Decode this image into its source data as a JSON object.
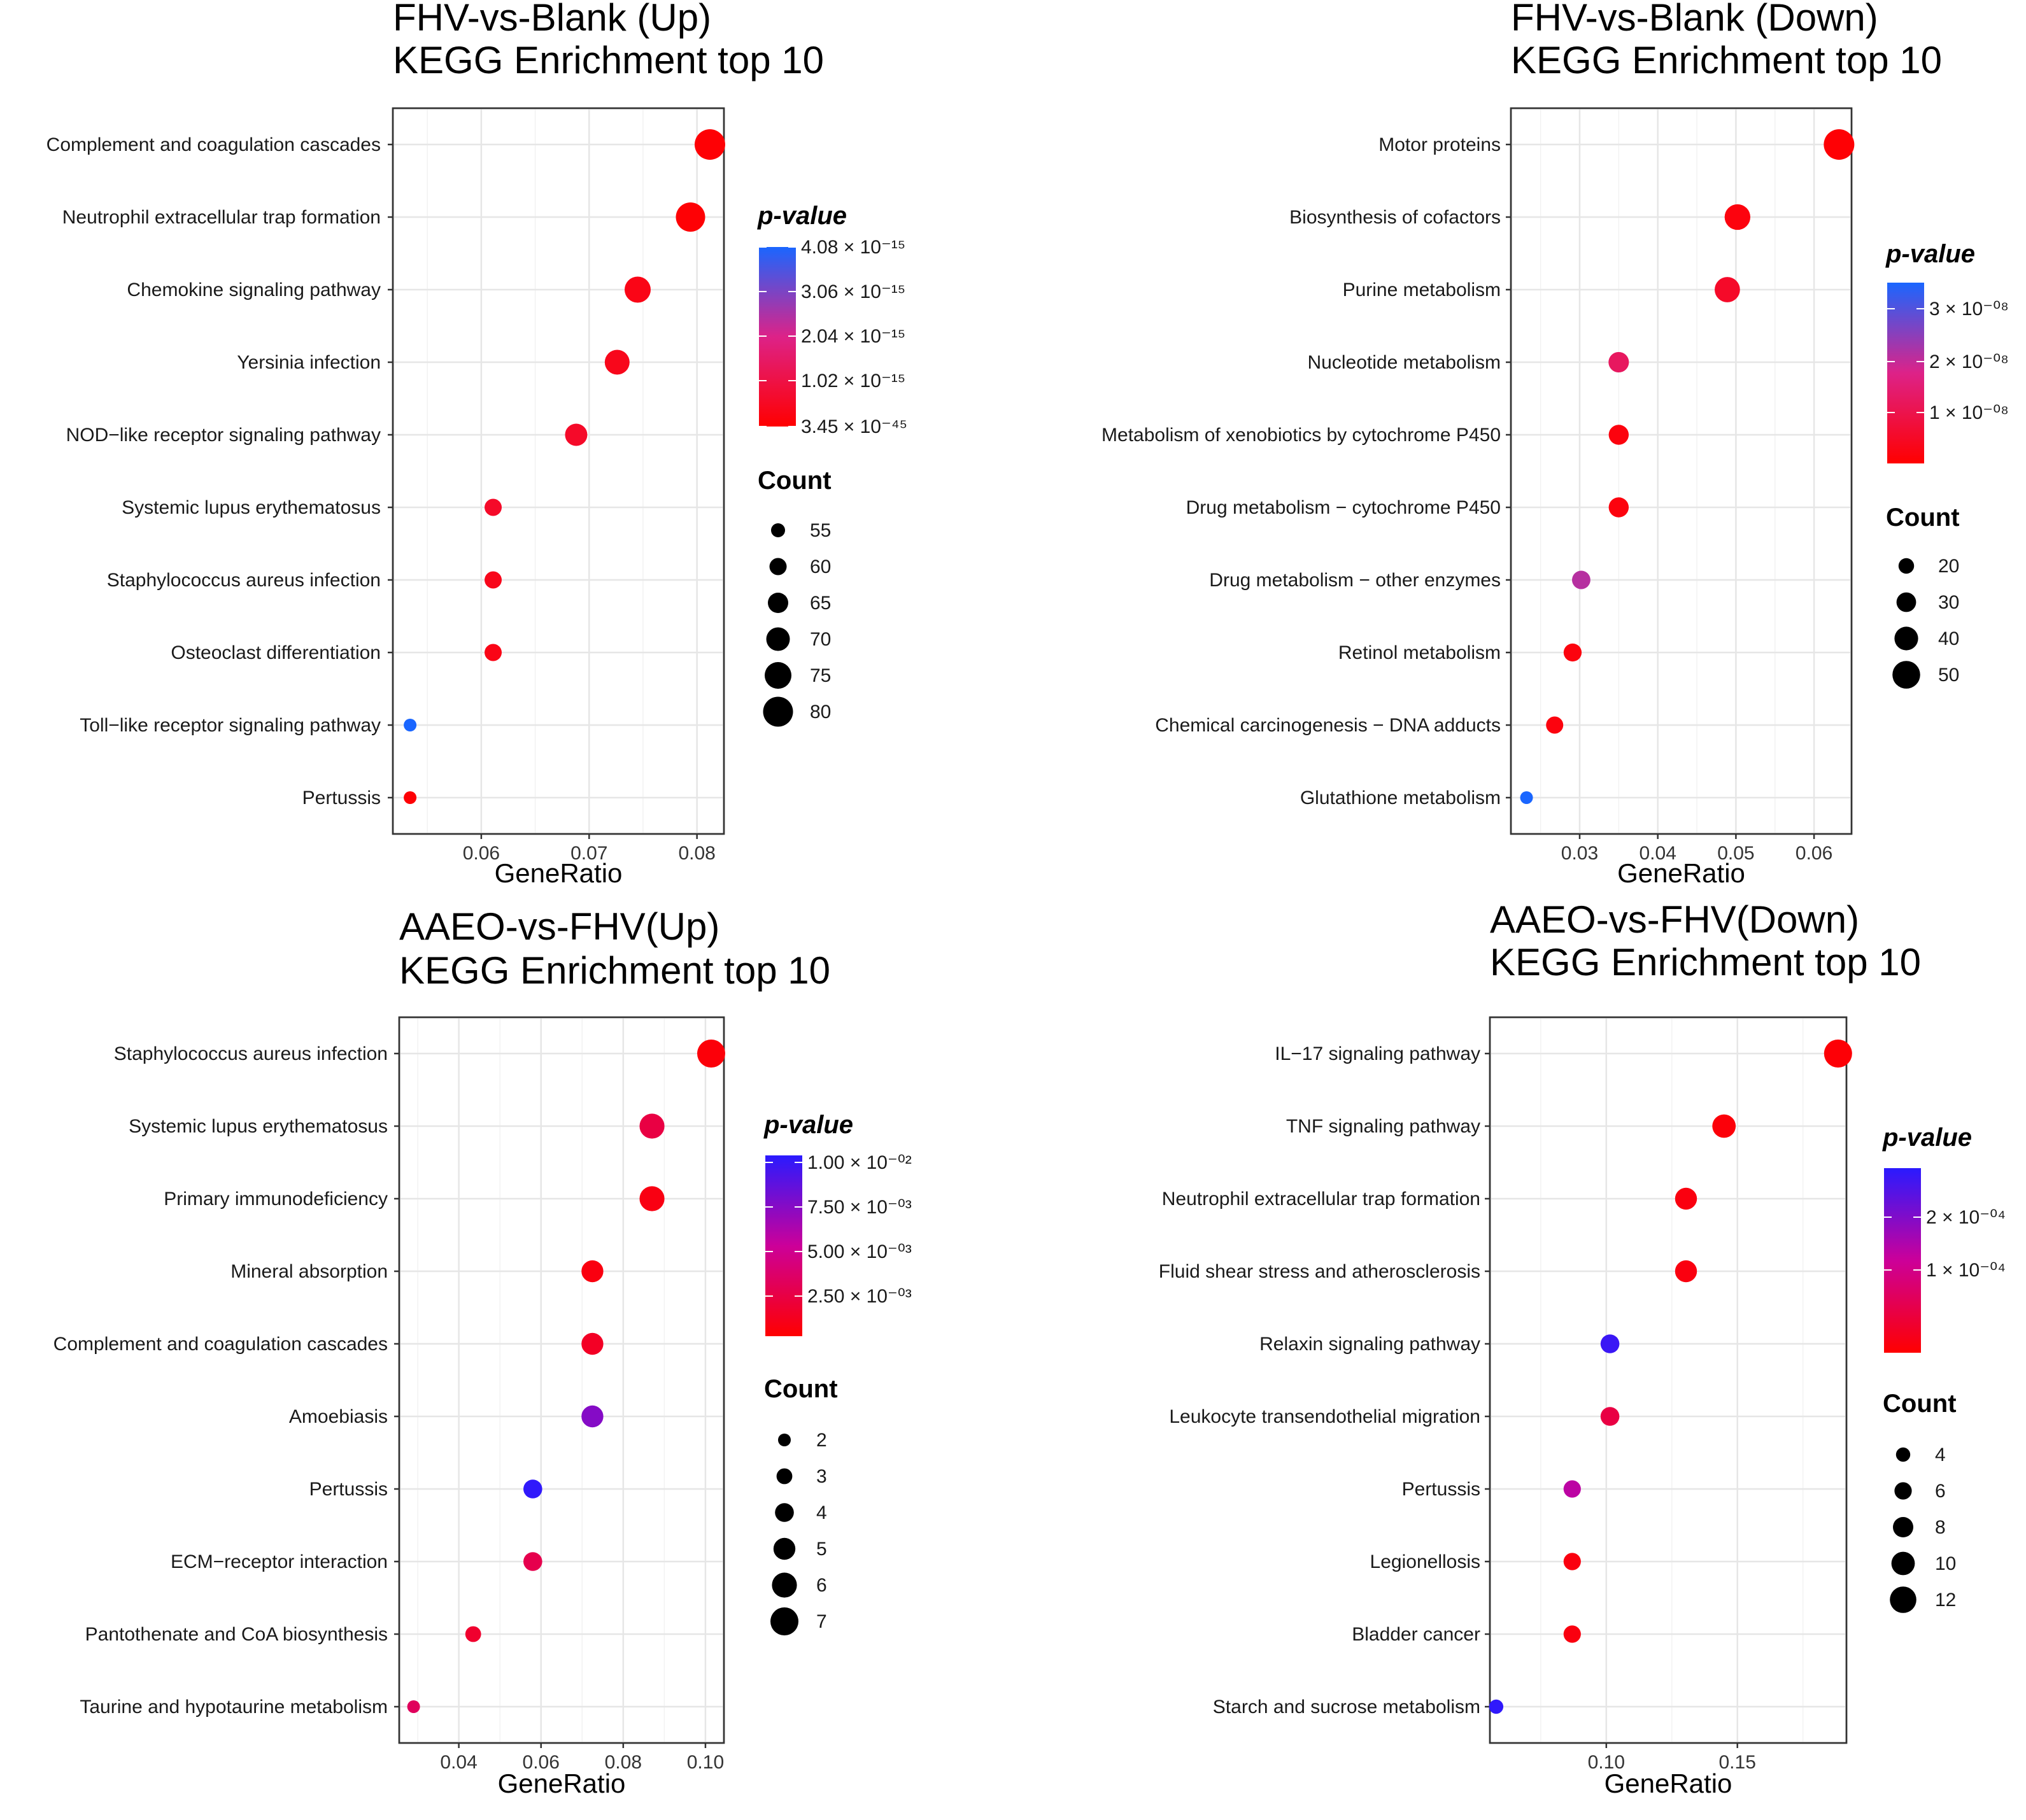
{
  "chart_data": [
    {
      "type": "scatter",
      "title": [
        "FHV-vs-Blank (Up)",
        "KEGG Enrichment top 10"
      ],
      "xlabel": "GeneRatio",
      "xticks": [
        "0.06",
        "0.07",
        "0.08"
      ],
      "xtick_values": [
        0.06,
        0.07,
        0.08
      ],
      "xlim": [
        0.0518,
        0.0825
      ],
      "color_legend": {
        "title": "p-value",
        "labels": [
          "4.08 × 10⁻¹⁵",
          "3.06 × 10⁻¹⁵",
          "2.04 × 10⁻¹⁵",
          "1.02 × 10⁻¹⁵",
          "3.45 × 10⁻⁴⁵"
        ],
        "top_color": "#1a66ff"
      },
      "size_legend": {
        "title": "Count",
        "labels": [
          "55",
          "60",
          "65",
          "70",
          "75",
          "80"
        ],
        "values": [
          55,
          60,
          65,
          70,
          75,
          80
        ]
      },
      "size_range": [
        53,
        81
      ],
      "categories": [
        "Complement and coagulation cascades",
        "Neutrophil extracellular trap formation",
        "Chemokine signaling pathway",
        "Yersinia infection",
        "NOD−like receptor signaling pathway",
        "Systemic lupus erythematosus",
        "Staphylococcus aureus infection",
        "Osteoclast differentiation",
        "Toll−like receptor signaling pathway",
        "Pertussis"
      ],
      "gene_ratio": [
        0.0812,
        0.0794,
        0.0745,
        0.0726,
        0.0688,
        0.0611,
        0.0611,
        0.0611,
        0.0534,
        0.0534
      ],
      "count": [
        81,
        79,
        74,
        72,
        68,
        60,
        60,
        60,
        53,
        53
      ],
      "p_value_rel": [
        0.02,
        0.02,
        0.08,
        0.1,
        0.15,
        0.15,
        0.1,
        0.08,
        1.0,
        0.02
      ]
    },
    {
      "type": "scatter",
      "title": [
        "FHV-vs-Blank (Down)",
        "KEGG Enrichment top 10"
      ],
      "xlabel": "GeneRatio",
      "xticks": [
        "0.03",
        "0.04",
        "0.05",
        "0.06"
      ],
      "xtick_values": [
        0.03,
        0.04,
        0.05,
        0.06
      ],
      "xlim": [
        0.0212,
        0.0648
      ],
      "color_legend": {
        "title": "p-value",
        "labels": [
          "3 × 10⁻⁰⁸",
          "2 × 10⁻⁰⁸",
          "1 × 10⁻⁰⁸"
        ],
        "top_color": "#1a66ff"
      },
      "size_legend": {
        "title": "Count",
        "labels": [
          "20",
          "30",
          "40",
          "50"
        ],
        "values": [
          20,
          30,
          40,
          50
        ]
      },
      "size_range": [
        13,
        57
      ],
      "categories": [
        "Motor proteins",
        "Biosynthesis of cofactors",
        "Purine metabolism",
        "Nucleotide metabolism",
        "Metabolism of xenobiotics by cytochrome P450",
        "Drug metabolism − cytochrome P450",
        "Drug metabolism − other enzymes",
        "Retinol metabolism",
        "Chemical carcinogenesis − DNA adducts",
        "Glutathione metabolism"
      ],
      "gene_ratio": [
        0.0632,
        0.0502,
        0.0489,
        0.035,
        0.035,
        0.035,
        0.0302,
        0.0291,
        0.0268,
        0.0232
      ],
      "count": [
        57,
        45,
        44,
        32,
        31,
        31,
        27,
        26,
        24,
        13
      ],
      "p_value_rel": [
        0.02,
        0.05,
        0.15,
        0.35,
        0.05,
        0.05,
        0.6,
        0.05,
        0.05,
        1.0
      ]
    },
    {
      "type": "scatter",
      "title": [
        "AAEO-vs-FHV(Up)",
        "KEGG Enrichment top 10"
      ],
      "xlabel": "GeneRatio",
      "xticks": [
        "0.04",
        "0.06",
        "0.08",
        "0.10"
      ],
      "xtick_values": [
        0.04,
        0.06,
        0.08,
        0.1
      ],
      "xlim": [
        0.0255,
        0.1045
      ],
      "color_legend": {
        "title": "p-value",
        "labels": [
          "1.00 × 10⁻⁰²",
          "7.50 × 10⁻⁰³",
          "5.00 × 10⁻⁰³",
          "2.50 × 10⁻⁰³"
        ],
        "top_color": "#2a1aff"
      },
      "size_legend": {
        "title": "Count",
        "labels": [
          "2",
          "3",
          "4",
          "5",
          "6",
          "7"
        ],
        "values": [
          2,
          3,
          4,
          5,
          6,
          7
        ]
      },
      "size_range": [
        2,
        7
      ],
      "categories": [
        "Staphylococcus aureus infection",
        "Systemic lupus erythematosus",
        "Primary immunodeficiency",
        "Mineral absorption",
        "Complement and coagulation cascades",
        "Amoebiasis",
        "Pertussis",
        "ECM−receptor interaction",
        "Pantothenate and CoA biosynthesis",
        "Taurine and hypotaurine metabolism"
      ],
      "gene_ratio": [
        0.1014,
        0.087,
        0.087,
        0.0725,
        0.0725,
        0.0725,
        0.058,
        0.058,
        0.0435,
        0.029
      ],
      "count": [
        7,
        6,
        6,
        5,
        5,
        5,
        4,
        4,
        3,
        2
      ],
      "p_value_rel": [
        0.03,
        0.22,
        0.06,
        0.05,
        0.12,
        0.72,
        0.98,
        0.25,
        0.15,
        0.3
      ]
    },
    {
      "type": "scatter",
      "title": [
        "AAEO-vs-FHV(Down)",
        "KEGG Enrichment top 10"
      ],
      "xlabel": "GeneRatio",
      "xticks": [
        "0.10",
        "0.15"
      ],
      "xtick_values": [
        0.1,
        0.15
      ],
      "xlim": [
        0.0556,
        0.1916
      ],
      "color_legend": {
        "title": "p-value",
        "labels": [
          "2 × 10⁻⁰⁴",
          "1 × 10⁻⁰⁴"
        ],
        "top_color": "#2a1aff"
      },
      "size_legend": {
        "title": "Count",
        "labels": [
          "4",
          "6",
          "8",
          "10",
          "12"
        ],
        "values": [
          4,
          6,
          8,
          10,
          12
        ]
      },
      "size_range": [
        3,
        13
      ],
      "categories": [
        "IL−17 signaling pathway",
        "TNF signaling pathway",
        "Neutrophil extracellular trap formation",
        "Fluid shear stress and atherosclerosis",
        "Relaxin signaling pathway",
        "Leukocyte transendothelial migration",
        "Pertussis",
        "Legionellosis",
        "Bladder cancer",
        "Starch and sucrose metabolism"
      ],
      "gene_ratio": [
        0.1884,
        0.1449,
        0.1304,
        0.1304,
        0.1014,
        0.1014,
        0.087,
        0.087,
        0.087,
        0.058
      ],
      "count": [
        13,
        10,
        9,
        9,
        7,
        7,
        6,
        6,
        6,
        4
      ],
      "p_value_rel": [
        0.02,
        0.03,
        0.05,
        0.05,
        0.95,
        0.22,
        0.55,
        0.05,
        0.05,
        0.98
      ]
    }
  ]
}
